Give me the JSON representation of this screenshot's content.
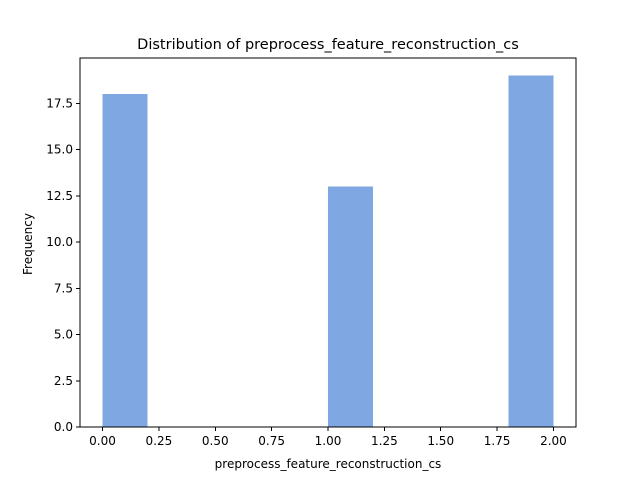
{
  "chart_data": {
    "type": "bar",
    "title": "Distribution of  preprocess_feature_reconstruction_cs",
    "xlabel": "preprocess_feature_reconstruction_cs",
    "ylabel": "Frequency",
    "bar_color": "#7fa7e1",
    "bins": [
      {
        "x0": 0.0,
        "x1": 0.2,
        "count": 18
      },
      {
        "x0": 1.0,
        "x1": 1.2,
        "count": 13
      },
      {
        "x0": 1.8,
        "x1": 2.0,
        "count": 19
      }
    ],
    "xlim": [
      -0.1,
      2.1
    ],
    "ylim": [
      0,
      19.95
    ],
    "xticks": [
      0.0,
      0.25,
      0.5,
      0.75,
      1.0,
      1.25,
      1.5,
      1.75,
      2.0
    ],
    "xtick_labels": [
      "0.00",
      "0.25",
      "0.50",
      "0.75",
      "1.00",
      "1.25",
      "1.50",
      "1.75",
      "2.00"
    ],
    "yticks": [
      0.0,
      2.5,
      5.0,
      7.5,
      10.0,
      12.5,
      15.0,
      17.5
    ],
    "ytick_labels": [
      "0.0",
      "2.5",
      "5.0",
      "7.5",
      "10.0",
      "12.5",
      "15.0",
      "17.5"
    ],
    "grid": false,
    "legend": "none"
  }
}
